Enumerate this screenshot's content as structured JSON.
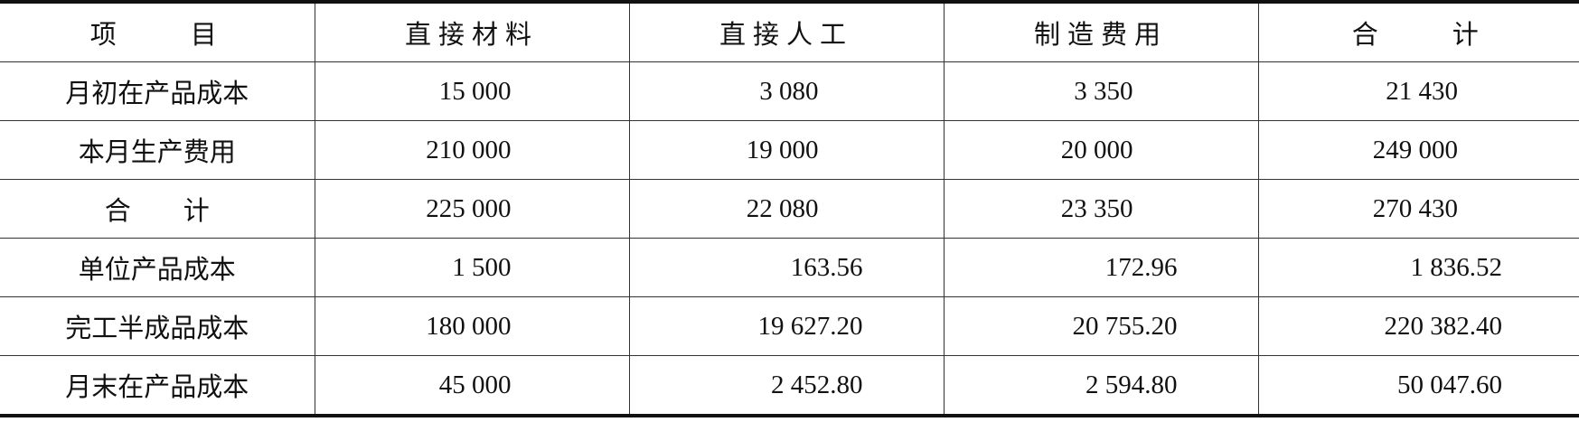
{
  "headers": [
    "项　　目",
    "直接材料",
    "直接人工",
    "制造费用",
    "合　　计"
  ],
  "rows": [
    {
      "label": "月初在产品成本",
      "values": [
        "15 000",
        "3 080",
        "3 350",
        "21 430"
      ]
    },
    {
      "label": "本月生产费用",
      "values": [
        "210 000",
        "19 000",
        "20 000",
        "249 000"
      ]
    },
    {
      "label": "合　　计",
      "values": [
        "225 000",
        "22 080",
        "23 350",
        "270 430"
      ]
    },
    {
      "label": "单位产品成本",
      "values": [
        "1 500",
        "163.56",
        "172.96",
        "1 836.52"
      ]
    },
    {
      "label": "完工半成品成本",
      "values": [
        "180 000",
        "19 627.20",
        "20 755.20",
        "220 382.40"
      ]
    },
    {
      "label": "月末在产品成本",
      "values": [
        "45 000",
        "2 452.80",
        "2 594.80",
        "50 047.60"
      ]
    }
  ]
}
